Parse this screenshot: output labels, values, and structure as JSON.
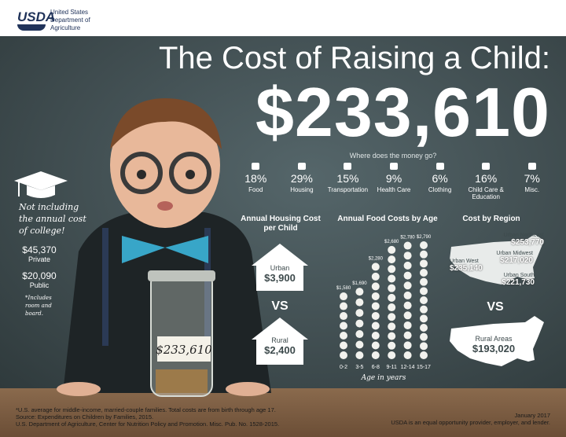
{
  "header": {
    "agency": "USDA",
    "agency_name": [
      "United States",
      "Department of",
      "Agriculture"
    ]
  },
  "title": "The Cost of Raising a Child:",
  "total": "$233,610",
  "breakdown": {
    "question": "Where does the money go?",
    "items": [
      {
        "percent": "18%",
        "label": "Food"
      },
      {
        "percent": "29%",
        "label": "Housing"
      },
      {
        "percent": "15%",
        "label": "Transportation"
      },
      {
        "percent": "9%",
        "label": "Health Care"
      },
      {
        "percent": "6%",
        "label": "Clothing"
      },
      {
        "percent": "16%",
        "label": "Child Care & Education"
      },
      {
        "percent": "7%",
        "label": "Misc."
      }
    ]
  },
  "housing": {
    "title": "Annual Housing Cost per Child",
    "urban_label": "Urban",
    "urban_value": "$3,900",
    "vs": "VS",
    "rural_label": "Rural",
    "rural_value": "$2,400"
  },
  "chart_data": {
    "type": "bar",
    "title": "Annual Food Costs by Age",
    "categories": [
      "0-2",
      "3-5",
      "6-8",
      "9-11",
      "12-14",
      "15-17"
    ],
    "values": [
      1580,
      1690,
      2280,
      2680,
      2780,
      2790
    ],
    "value_labels": [
      "$1,580",
      "$1,690",
      "$2,280",
      "$2,680",
      "$2,780",
      "$2,790"
    ],
    "x_label": "Age in years",
    "color": "#f2f2ee"
  },
  "region": {
    "title": "Cost by Region",
    "items": [
      {
        "name": "Urban Northeast",
        "value": "$253,770"
      },
      {
        "name": "Urban Midwest",
        "value": "$217,020"
      },
      {
        "name": "Urban West",
        "value": "$235,140"
      },
      {
        "name": "Urban South",
        "value": "$221,730"
      }
    ],
    "vs": "VS",
    "rural_name": "Rural Areas",
    "rural_value": "$193,020"
  },
  "college": {
    "note": "Not including the annual cost of college!",
    "private_value": "$45,370",
    "private_label": "Private",
    "public_value": "$20,090",
    "public_label": "Public",
    "footnote": "*Includes room and board."
  },
  "jar_label": "$233,610",
  "footer": {
    "notes": [
      "*U.S. average for middle-income, married-couple families. Total costs are from birth through age 17.",
      "Source: Expenditures on Children by Families, 2015.",
      "U.S. Department of Agriculture, Center for Nutrition Policy and Promotion. Misc. Pub. No. 1528-2015."
    ],
    "date": "January 2017",
    "equal": "USDA is an equal opportunity provider, employer, and lender."
  }
}
